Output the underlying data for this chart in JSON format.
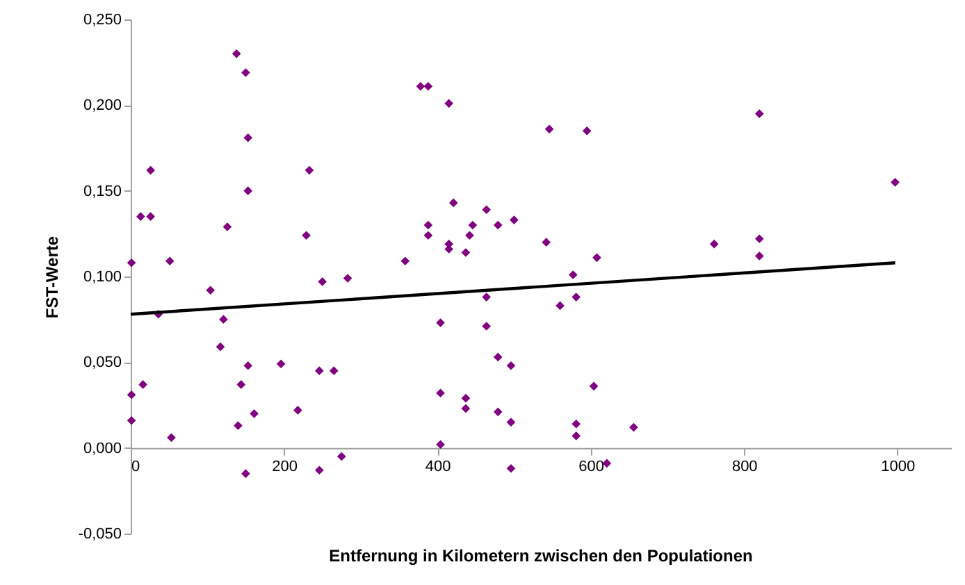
{
  "chart_data": {
    "type": "scatter",
    "xlabel": "Entfernung in Kilometern zwischen den Populationen",
    "ylabel": "FST-Werte",
    "xlim": [
      0,
      1070
    ],
    "xticks": [
      0,
      200,
      400,
      600,
      800,
      1000
    ],
    "ylim": [
      -0.05,
      0.25
    ],
    "yticks": [
      {
        "value": -0.05,
        "label": "-0,050"
      },
      {
        "value": 0,
        "label": "0,000"
      },
      {
        "value": 0.05,
        "label": "0,050"
      },
      {
        "value": 0.1,
        "label": "0,100"
      },
      {
        "value": 0.15,
        "label": "0,150"
      },
      {
        "value": 0.2,
        "label": "0,200"
      },
      {
        "value": 0.25,
        "label": "0,250"
      }
    ],
    "grid": false,
    "marker": "diamond",
    "series": [
      {
        "color": "#800080",
        "x": [
          138,
          150,
          153,
          26,
          233,
          153,
          13,
          26,
          126,
          229,
          1,
          51,
          358,
          250,
          283,
          104,
          36,
          121,
          117,
          153,
          196,
          246,
          265,
          16,
          144,
          1,
          1,
          161,
          218,
          140,
          53,
          275,
          246,
          150,
          378,
          388,
          415,
          546,
          595,
          421,
          464,
          388,
          446,
          479,
          500,
          388,
          442,
          415,
          415,
          437,
          542,
          608,
          577,
          464,
          581,
          560,
          404,
          464,
          479,
          496,
          604,
          404,
          437,
          437,
          479,
          496,
          581,
          581,
          656,
          404,
          496,
          621,
          820,
          997,
          761,
          820,
          820
        ],
        "values": [
          0.23,
          0.219,
          0.181,
          0.162,
          0.162,
          0.15,
          0.135,
          0.135,
          0.129,
          0.124,
          0.108,
          0.109,
          0.109,
          0.097,
          0.099,
          0.092,
          0.078,
          0.075,
          0.059,
          0.048,
          0.049,
          0.045,
          0.045,
          0.037,
          0.037,
          0.031,
          0.016,
          0.02,
          0.022,
          0.013,
          0.006,
          -0.005,
          -0.013,
          -0.015,
          0.211,
          0.211,
          0.201,
          0.186,
          0.185,
          0.143,
          0.139,
          0.13,
          0.13,
          0.13,
          0.133,
          0.124,
          0.124,
          0.119,
          0.116,
          0.114,
          0.12,
          0.111,
          0.101,
          0.088,
          0.088,
          0.083,
          0.073,
          0.071,
          0.053,
          0.048,
          0.036,
          0.032,
          0.029,
          0.023,
          0.021,
          0.015,
          0.014,
          0.007,
          0.012,
          0.002,
          -0.012,
          -0.009,
          0.195,
          0.155,
          0.119,
          0.122,
          0.112
        ]
      },
      {
        "type": "line",
        "marker": "none",
        "color": "#000000",
        "x": [
          0,
          997
        ],
        "values": [
          0.078,
          0.108
        ]
      }
    ]
  }
}
